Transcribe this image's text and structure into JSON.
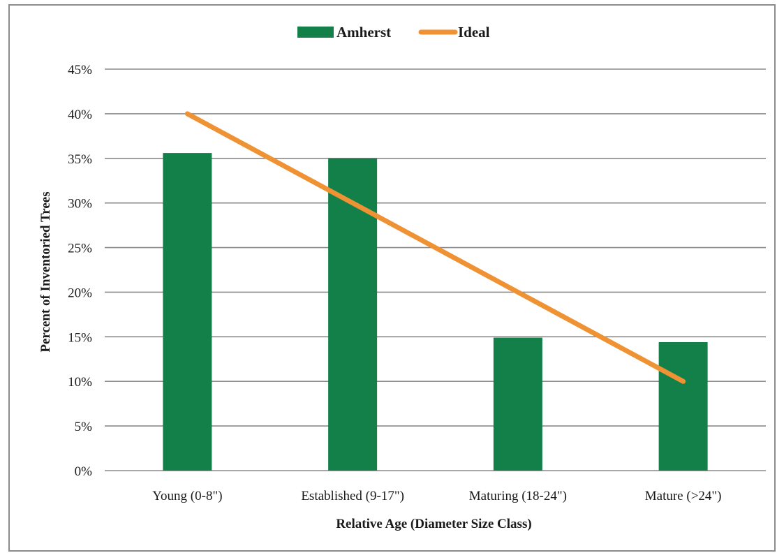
{
  "chart_data": {
    "type": "bar",
    "categories": [
      "Young (0-8\")",
      "Established (9-17\")",
      "Maturing (18-24\")",
      "Mature (>24\")"
    ],
    "series": [
      {
        "name": "Amherst",
        "type": "bar",
        "values": [
          35.6,
          35.0,
          14.9,
          14.4
        ],
        "color": "#138049"
      },
      {
        "name": "Ideal",
        "type": "line",
        "values": [
          40,
          30,
          20,
          10
        ],
        "color": "#ee9234"
      }
    ],
    "xlabel": "Relative Age (Diameter Size Class)",
    "ylabel": "Percent of Inventoried Trees",
    "ylim": [
      0,
      45
    ],
    "yticks": [
      "0%",
      "5%",
      "10%",
      "15%",
      "20%",
      "25%",
      "30%",
      "35%",
      "40%",
      "45%"
    ],
    "grid": true,
    "legend_position": "top-center"
  }
}
